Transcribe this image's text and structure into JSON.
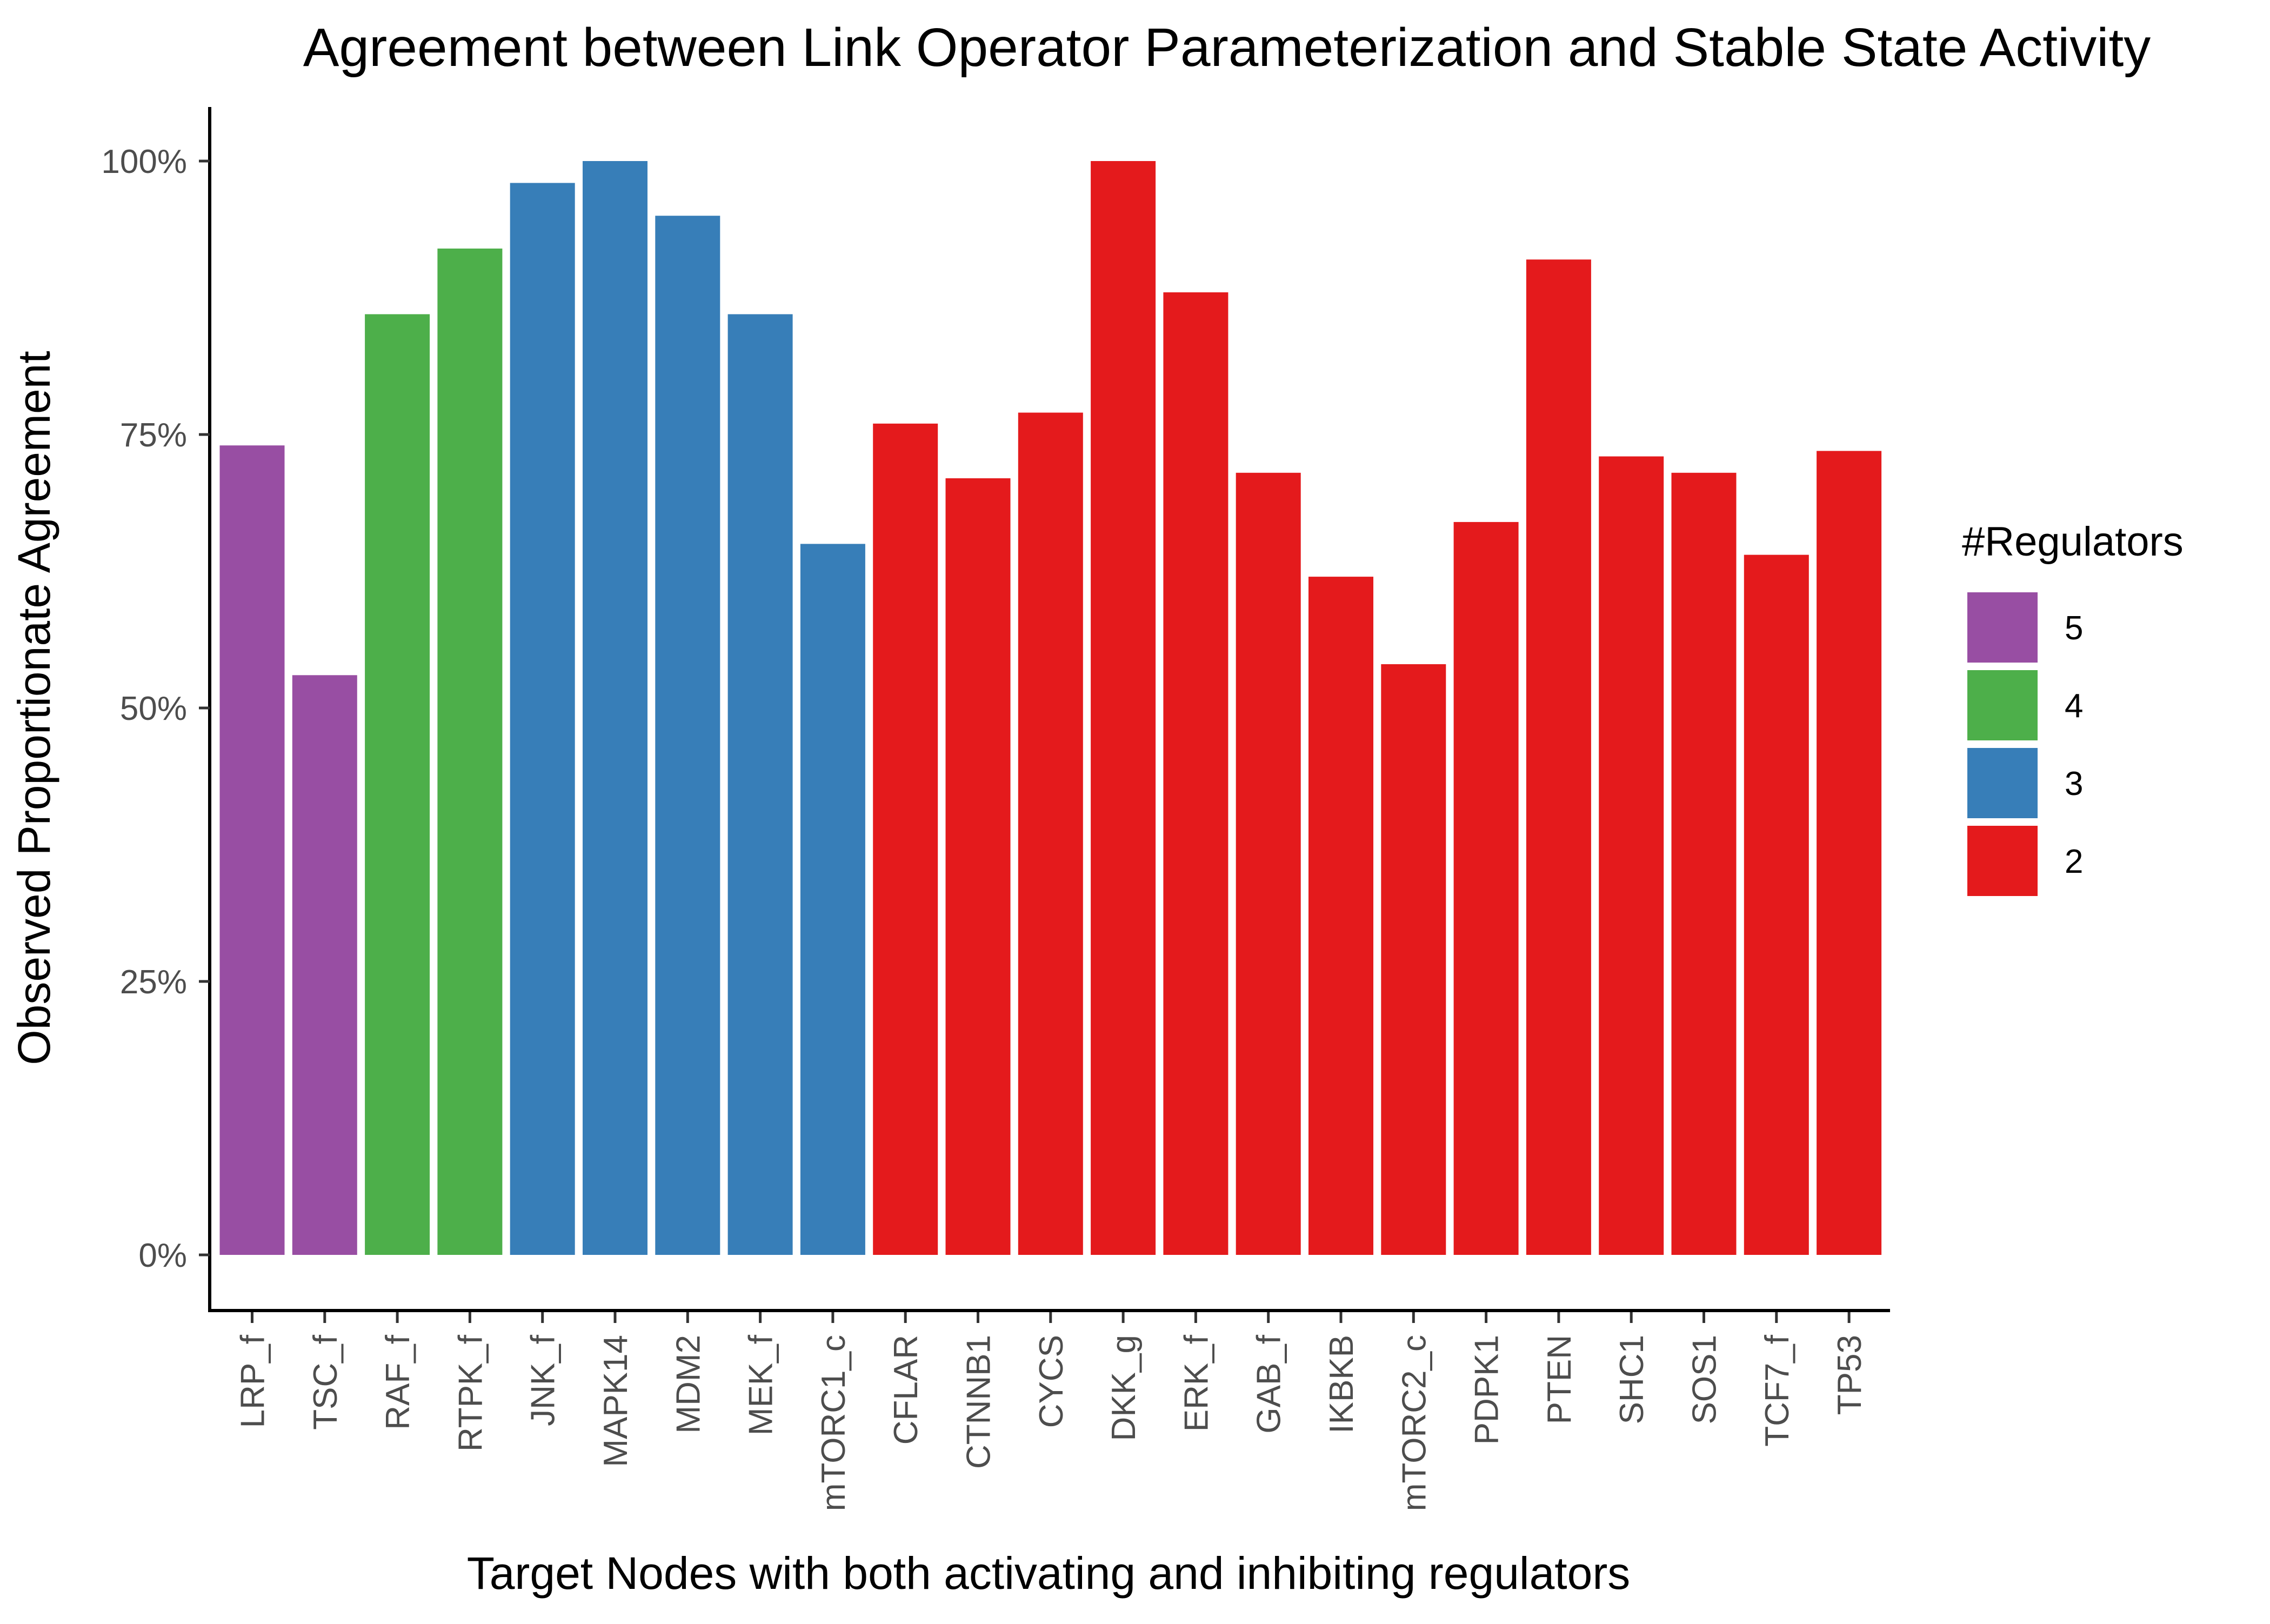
{
  "chart_data": {
    "type": "bar",
    "title": "Agreement between Link Operator Parameterization and Stable State Activity",
    "xlabel": "Target Nodes with both activating and inhibiting regulators",
    "ylabel": "Observed Proportionate Agreement",
    "ylim": [
      0,
      1.05
    ],
    "y_ticks": [
      {
        "value": 0,
        "label": "0%"
      },
      {
        "value": 0.25,
        "label": "25%"
      },
      {
        "value": 0.5,
        "label": "50%"
      },
      {
        "value": 0.75,
        "label": "75%"
      },
      {
        "value": 1.0,
        "label": "100%"
      }
    ],
    "grid": false,
    "legend_placement": "right",
    "legend": {
      "title": "#Regulators",
      "entries": [
        {
          "label": "5",
          "color": "#984EA3"
        },
        {
          "label": "4",
          "color": "#4DAF4A"
        },
        {
          "label": "3",
          "color": "#377EB8"
        },
        {
          "label": "2",
          "color": "#E41A1C"
        }
      ]
    },
    "bars": [
      {
        "category": "LRP_f",
        "value": 0.74,
        "regulators": "5"
      },
      {
        "category": "TSC_f",
        "value": 0.53,
        "regulators": "5"
      },
      {
        "category": "RAF_f",
        "value": 0.86,
        "regulators": "4"
      },
      {
        "category": "RTPK_f",
        "value": 0.92,
        "regulators": "4"
      },
      {
        "category": "JNK_f",
        "value": 0.98,
        "regulators": "3"
      },
      {
        "category": "MAPK14",
        "value": 1.0,
        "regulators": "3"
      },
      {
        "category": "MDM2",
        "value": 0.95,
        "regulators": "3"
      },
      {
        "category": "MEK_f",
        "value": 0.86,
        "regulators": "3"
      },
      {
        "category": "mTORC1_c",
        "value": 0.65,
        "regulators": "3"
      },
      {
        "category": "CFLAR",
        "value": 0.76,
        "regulators": "2"
      },
      {
        "category": "CTNNB1",
        "value": 0.71,
        "regulators": "2"
      },
      {
        "category": "CYCS",
        "value": 0.77,
        "regulators": "2"
      },
      {
        "category": "DKK_g",
        "value": 1.0,
        "regulators": "2"
      },
      {
        "category": "ERK_f",
        "value": 0.88,
        "regulators": "2"
      },
      {
        "category": "GAB_f",
        "value": 0.715,
        "regulators": "2"
      },
      {
        "category": "IKBKB",
        "value": 0.62,
        "regulators": "2"
      },
      {
        "category": "mTORC2_c",
        "value": 0.54,
        "regulators": "2"
      },
      {
        "category": "PDPK1",
        "value": 0.67,
        "regulators": "2"
      },
      {
        "category": "PTEN",
        "value": 0.91,
        "regulators": "2"
      },
      {
        "category": "SHC1",
        "value": 0.73,
        "regulators": "2"
      },
      {
        "category": "SOS1",
        "value": 0.715,
        "regulators": "2"
      },
      {
        "category": "TCF7_f",
        "value": 0.64,
        "regulators": "2"
      },
      {
        "category": "TP53",
        "value": 0.735,
        "regulators": "2"
      }
    ]
  }
}
